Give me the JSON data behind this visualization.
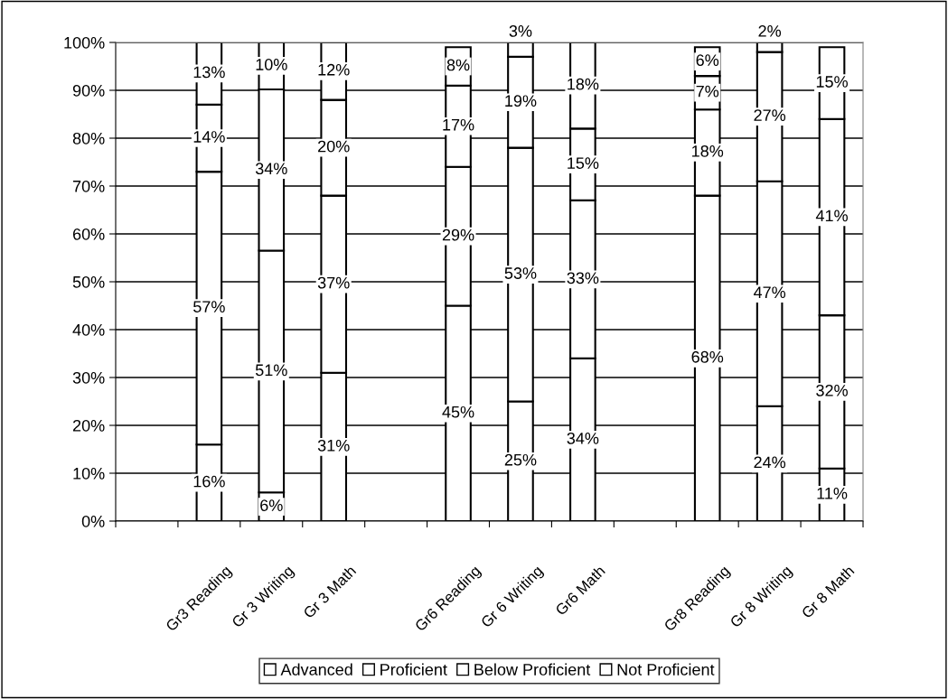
{
  "chart_data": {
    "type": "bar",
    "stacked": true,
    "categories": [
      null,
      "Gr3 Reading",
      "Gr 3 Writing",
      "Gr 3 Math",
      null,
      "Gr6 Reading",
      "Gr 6 Writing",
      "Gr6 Math",
      null,
      "Gr8 Reading",
      "Gr 8 Writing",
      "Gr 8 Math"
    ],
    "series": [
      {
        "name": "Not Proficient",
        "color": "#ffffff",
        "values": [
          null,
          16,
          6,
          31,
          null,
          45,
          25,
          34,
          null,
          68,
          24,
          11
        ]
      },
      {
        "name": "Below Proficient",
        "color": "#ffffff",
        "values": [
          null,
          57,
          50.5,
          37,
          null,
          29,
          53,
          33,
          null,
          18,
          47,
          32
        ]
      },
      {
        "name": "Proficient",
        "color": "#ffffff",
        "values": [
          null,
          14,
          33.7,
          20,
          null,
          17,
          19,
          15,
          null,
          7,
          27,
          41
        ]
      },
      {
        "name": "Advanced",
        "color": "#ffffff",
        "values": [
          null,
          13,
          9.8,
          12,
          null,
          8,
          3,
          18,
          null,
          6,
          2,
          15
        ]
      }
    ],
    "ylim": [
      0,
      100
    ],
    "yticks": [
      {
        "value": 0,
        "label": "0%"
      },
      {
        "value": 10,
        "label": "10%"
      },
      {
        "value": 20,
        "label": "20%"
      },
      {
        "value": 30,
        "label": "30%"
      },
      {
        "value": 40,
        "label": "40%"
      },
      {
        "value": 50,
        "label": "50%"
      },
      {
        "value": 60,
        "label": "60%"
      },
      {
        "value": 70,
        "label": "70%"
      },
      {
        "value": 80,
        "label": "80%"
      },
      {
        "value": 90,
        "label": "90%"
      },
      {
        "value": 100,
        "label": "100%"
      }
    ],
    "grid": "y",
    "legend": "bottom",
    "value_labels": [
      [
        null,
        "16%",
        "6%",
        "31%",
        null,
        "45%",
        "25%",
        "34%",
        null,
        "68%",
        "24%",
        "11%"
      ],
      [
        null,
        "57%",
        "51%",
        "37%",
        null,
        "29%",
        "53%",
        "33%",
        null,
        "18%",
        "47%",
        "32%"
      ],
      [
        null,
        "14%",
        "34%",
        "20%",
        null,
        "17%",
        "19%",
        "15%",
        null,
        "7%",
        "27%",
        "41%"
      ],
      [
        null,
        "13%",
        "10%",
        "12%",
        null,
        "8%",
        "3%",
        "18%",
        null,
        "6%",
        "2%",
        "15%"
      ]
    ]
  }
}
